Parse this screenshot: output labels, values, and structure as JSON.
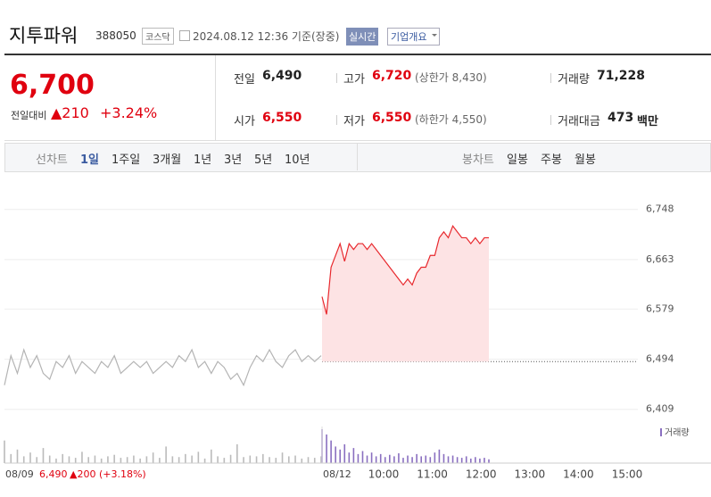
{
  "header": {
    "name": "지투파워",
    "code": "388050",
    "market": "코스닥",
    "datetime": "2024.08.12 12:36 기준(장중)",
    "realtime": "실시간",
    "company": "기업개요"
  },
  "quote": {
    "price": "6,700",
    "change_label": "전일대비",
    "change": "▲210",
    "percent": "+3.24%"
  },
  "stats": [
    {
      "label": "전일",
      "value": "6,490"
    },
    {
      "label": "고가",
      "value": "6,720",
      "note": "(상한가 8,430)",
      "color": "#e0000f"
    },
    {
      "label": "거래량",
      "value": "71,228"
    },
    {
      "label": "시가",
      "value": "6,550",
      "color": "#e0000f"
    },
    {
      "label": "저가",
      "value": "6,550",
      "note": "(하한가 4,550)",
      "color": "#e0000f"
    },
    {
      "label": "거래대금",
      "value": "473",
      "unit": "백만"
    }
  ],
  "tabs": {
    "line_label": "선차트",
    "line_tabs": [
      "1일",
      "1주일",
      "3개월",
      "1년",
      "3년",
      "5년",
      "10년"
    ],
    "candle_label": "봉차트",
    "candle_tabs": [
      "일봉",
      "주봉",
      "월봉"
    ]
  },
  "chart": {
    "ylim": [
      6395,
      6793
    ],
    "yticks": [
      {
        "value": 6748,
        "label": "6,748"
      },
      {
        "value": 6663,
        "label": "6,663"
      },
      {
        "value": 6579,
        "label": "6,579"
      },
      {
        "value": 6494,
        "label": "6,494"
      },
      {
        "value": 6409,
        "label": "6,409"
      }
    ],
    "prev_close": 6490,
    "series": [
      {
        "name": "08/09",
        "color": "#b4b4b4",
        "values": [
          6450,
          6500,
          6470,
          6510,
          6480,
          6500,
          6470,
          6460,
          6490,
          6480,
          6500,
          6470,
          6490,
          6480,
          6470,
          6490,
          6480,
          6500,
          6470,
          6480,
          6490,
          6480,
          6490,
          6470,
          6480,
          6490,
          6480,
          6500,
          6490,
          6510,
          6480,
          6490,
          6470,
          6490,
          6480,
          6460,
          6470,
          6450,
          6480,
          6500,
          6490,
          6510,
          6490,
          6480,
          6500,
          6510,
          6490,
          6500,
          6490,
          6500
        ],
        "volume": [
          30,
          12,
          18,
          9,
          14,
          8,
          20,
          10,
          6,
          12,
          9,
          7,
          15,
          8,
          10,
          6,
          9,
          11,
          7,
          8,
          10,
          6,
          9,
          14,
          7,
          22,
          9,
          8,
          12,
          10,
          15,
          6,
          18,
          9,
          7,
          11,
          25,
          8,
          10,
          9,
          12,
          8,
          7,
          14,
          9,
          10,
          6,
          8,
          7,
          9
        ]
      },
      {
        "name": "08/12",
        "color": "#e8282d",
        "values": [
          6600,
          6570,
          6650,
          6670,
          6690,
          6660,
          6690,
          6680,
          6690,
          6690,
          6680,
          6690,
          6680,
          6670,
          6660,
          6650,
          6640,
          6630,
          6620,
          6630,
          6620,
          6640,
          6650,
          6650,
          6670,
          6670,
          6700,
          6710,
          6700,
          6720,
          6710,
          6700,
          6700,
          6690,
          6700,
          6690,
          6700,
          6700
        ],
        "volume": [
          45,
          38,
          30,
          22,
          18,
          25,
          14,
          20,
          12,
          16,
          10,
          14,
          9,
          12,
          8,
          11,
          9,
          13,
          7,
          10,
          8,
          12,
          9,
          10,
          8,
          14,
          18,
          12,
          9,
          10,
          8,
          7,
          9,
          6,
          8,
          6,
          7,
          5
        ]
      }
    ],
    "time_labels": [
      "10:00",
      "11:00",
      "12:00",
      "13:00",
      "14:00",
      "15:00"
    ],
    "volume_label": "거래량",
    "prev_info": {
      "price": "6,490",
      "change": "▲200 (+3.18%)"
    }
  }
}
